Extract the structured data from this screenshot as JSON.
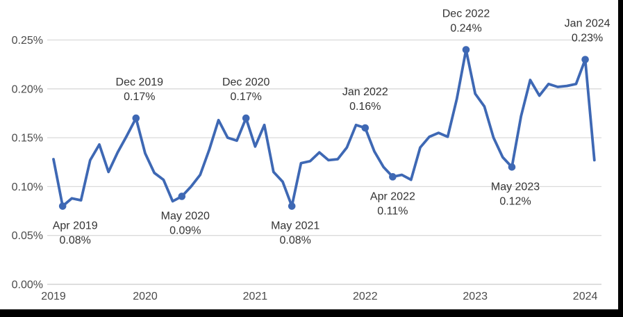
{
  "chart_data": {
    "type": "line",
    "title": "",
    "xlabel": "",
    "ylabel": "",
    "unit": "percent",
    "x": [
      "Mar 2019",
      "Apr 2019",
      "May 2019",
      "Jun 2019",
      "Jul 2019",
      "Aug 2019",
      "Sep 2019",
      "Oct 2019",
      "Nov 2019",
      "Dec 2019",
      "Jan 2020",
      "Feb 2020",
      "Mar 2020",
      "Apr 2020",
      "May 2020",
      "Jun 2020",
      "Jul 2020",
      "Aug 2020",
      "Sep 2020",
      "Oct 2020",
      "Nov 2020",
      "Dec 2020",
      "Jan 2021",
      "Feb 2021",
      "Mar 2021",
      "Apr 2021",
      "May 2021",
      "Jun 2021",
      "Jul 2021",
      "Aug 2021",
      "Sep 2021",
      "Oct 2021",
      "Nov 2021",
      "Dec 2021",
      "Jan 2022",
      "Feb 2022",
      "Mar 2022",
      "Apr 2022",
      "May 2022",
      "Jun 2022",
      "Jul 2022",
      "Aug 2022",
      "Sep 2022",
      "Oct 2022",
      "Nov 2022",
      "Dec 2022",
      "Jan 2023",
      "Feb 2023",
      "Mar 2023",
      "Apr 2023",
      "May 2023",
      "Jun 2023",
      "Jul 2023",
      "Aug 2023",
      "Sep 2023",
      "Oct 2023",
      "Nov 2023",
      "Dec 2023",
      "Jan 2024",
      "Feb 2024"
    ],
    "values": [
      0.128,
      0.08,
      0.088,
      0.086,
      0.127,
      0.143,
      0.115,
      0.135,
      0.152,
      0.17,
      0.134,
      0.114,
      0.107,
      0.085,
      0.09,
      0.1,
      0.112,
      0.138,
      0.168,
      0.15,
      0.147,
      0.17,
      0.141,
      0.163,
      0.115,
      0.105,
      0.08,
      0.124,
      0.126,
      0.135,
      0.127,
      0.128,
      0.14,
      0.163,
      0.16,
      0.136,
      0.12,
      0.11,
      0.112,
      0.107,
      0.14,
      0.151,
      0.155,
      0.151,
      0.19,
      0.24,
      0.195,
      0.182,
      0.15,
      0.13,
      0.12,
      0.172,
      0.209,
      0.193,
      0.205,
      0.202,
      0.203,
      0.205,
      0.23,
      0.127
    ],
    "ylim": [
      0,
      0.25
    ],
    "y_step": 0.05,
    "y_ticks": [
      "0.00%",
      "0.05%",
      "0.10%",
      "0.15%",
      "0.20%",
      "0.25%"
    ],
    "x_ticks": [
      "2019",
      "2020",
      "2021",
      "2022",
      "2023",
      "2024"
    ],
    "grid": "horizontal",
    "legend": "none",
    "annotations": [
      {
        "x": "Apr 2019",
        "label": "Apr 2019",
        "value_label": "0.08%",
        "position": "below",
        "dx": 18
      },
      {
        "x": "Dec 2019",
        "label": "Dec 2019",
        "value_label": "0.17%",
        "position": "above",
        "dx": 5
      },
      {
        "x": "May 2020",
        "label": "May 2020",
        "value_label": "0.09%",
        "position": "below",
        "dx": 5
      },
      {
        "x": "Dec 2020",
        "label": "Dec 2020",
        "value_label": "0.17%",
        "position": "above",
        "dx": 0
      },
      {
        "x": "May 2021",
        "label": "May 2021",
        "value_label": "0.08%",
        "position": "below",
        "dx": 5
      },
      {
        "x": "Jan 2022",
        "label": "Jan 2022",
        "value_label": "0.16%",
        "position": "above",
        "dx": 0
      },
      {
        "x": "Apr 2022",
        "label": "Apr 2022",
        "value_label": "0.11%",
        "position": "below",
        "dx": 0
      },
      {
        "x": "Dec 2022",
        "label": "Dec 2022",
        "value_label": "0.24%",
        "position": "above",
        "dx": 0
      },
      {
        "x": "May 2023",
        "label": "May 2023",
        "value_label": "0.12%",
        "position": "below",
        "dx": 5
      },
      {
        "x": "Jan 2024",
        "label": "Jan 2024",
        "value_label": "0.23%",
        "position": "above",
        "dx": 3
      }
    ]
  },
  "colors": {
    "line": "#3E68B4",
    "marker": "#3E68B4",
    "grid": "#DADADA",
    "axis_line": "#C9C9C9",
    "tick_text": "#4A4A4A",
    "annotation_text": "#333333",
    "background": "#FFFFFF",
    "border": "#000000"
  }
}
